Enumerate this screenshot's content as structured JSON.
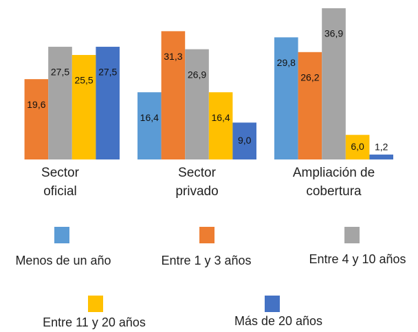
{
  "chart_data": {
    "type": "bar",
    "categories": [
      "Sector\noficial",
      "Sector\nprivado",
      "Ampliación de\ncobertura"
    ],
    "series": [
      {
        "name": "Menos de un año",
        "color": "#5b9bd5",
        "values": [
          null,
          16.4,
          29.8
        ],
        "value_labels": [
          null,
          "16,4",
          "29,8"
        ]
      },
      {
        "name": "Entre 1 y 3 años",
        "color": "#ed7d31",
        "values": [
          19.6,
          31.3,
          26.2
        ],
        "value_labels": [
          "19,6",
          "31,3",
          "26,2"
        ]
      },
      {
        "name": "Entre 4 y 10 años",
        "color": "#a5a5a5",
        "values": [
          27.5,
          26.9,
          36.9
        ],
        "value_labels": [
          "27,5",
          "26,9",
          "36,9"
        ]
      },
      {
        "name": "Entre 11 y 20 años",
        "color": "#ffc000",
        "values": [
          25.5,
          16.4,
          6.0
        ],
        "value_labels": [
          "25,5",
          "16,4",
          "6,0"
        ]
      },
      {
        "name": "Más de 20 años",
        "color": "#4472c4",
        "values": [
          27.5,
          9.0,
          1.2
        ],
        "value_labels": [
          "27,5",
          "9,0",
          "1,2"
        ]
      }
    ]
  }
}
